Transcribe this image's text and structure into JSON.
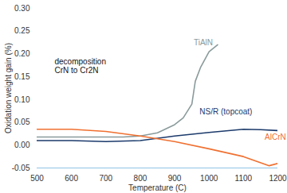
{
  "chart_data": {
    "type": "line",
    "x_label": "Temperature (C)",
    "y_label": "Oxidation weight gain (%)",
    "xlim": [
      500,
      1200
    ],
    "xticks": [
      500,
      600,
      700,
      800,
      900,
      1000,
      1100,
      1200
    ],
    "ylim": [
      -0.05,
      0.3
    ],
    "yticks": [
      -0.05,
      {
        "value": 0,
        "label": "0.00"
      },
      0.05,
      {
        "value": 0.1,
        "label": "0.10"
      },
      0.15,
      {
        "value": 0.2,
        "label": "0.20"
      },
      0.25,
      {
        "value": 0.3,
        "label": "0.30"
      }
    ],
    "grid": false,
    "annotations": [
      "decomposition\nCrN to Cr2N"
    ],
    "series": [
      {
        "name": "TiAlN",
        "color": "#8a9a9a",
        "x": [
          500,
          600,
          700,
          750,
          800,
          850,
          900,
          925,
          950,
          960,
          975,
          1000,
          1025
        ],
        "values": [
          0.018,
          0.018,
          0.018,
          0.018,
          0.02,
          0.027,
          0.045,
          0.06,
          0.09,
          0.14,
          0.17,
          0.205,
          0.22
        ]
      },
      {
        "name": "NS/R (topcoat)",
        "color": "#1b3a6b",
        "x": [
          500,
          600,
          700,
          800,
          900,
          1000,
          1100,
          1150,
          1200
        ],
        "values": [
          0.01,
          0.01,
          0.008,
          0.01,
          0.02,
          0.028,
          0.035,
          0.034,
          0.032
        ]
      },
      {
        "name": "AlCrN",
        "color": "#f07030",
        "x": [
          500,
          600,
          700,
          800,
          900,
          1000,
          1100,
          1175,
          1200
        ],
        "values": [
          0.035,
          0.035,
          0.03,
          0.02,
          0.008,
          -0.008,
          -0.025,
          -0.045,
          -0.04
        ]
      }
    ]
  }
}
